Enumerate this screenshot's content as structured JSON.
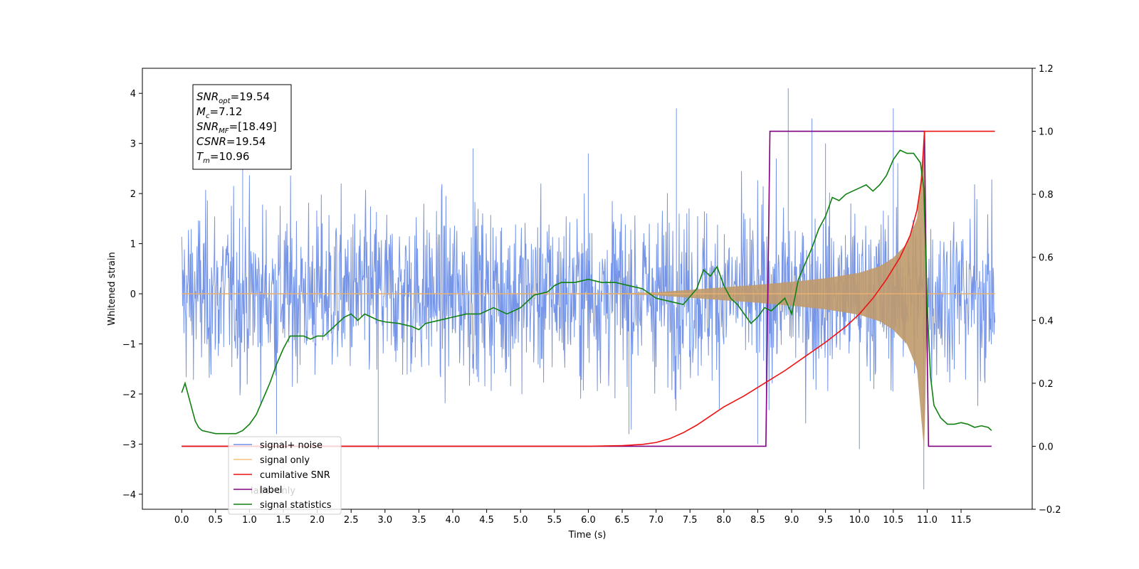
{
  "chart_data": {
    "type": "line",
    "xlabel": "Time (s)",
    "ylabel": "Whitened strain",
    "xlim": [
      -0.58,
      12.55
    ],
    "ylim": [
      -4.3,
      4.5
    ],
    "y2lim": [
      -0.2,
      1.2
    ],
    "x_ticks": [
      "0.0",
      "0.5",
      "1.0",
      "1.5",
      "2.0",
      "2.5",
      "3.0",
      "3.5",
      "4.0",
      "4.5",
      "5.0",
      "5.5",
      "6.0",
      "6.5",
      "7.0",
      "7.5",
      "8.0",
      "8.5",
      "9.0",
      "9.5",
      "10.0",
      "10.5",
      "11.0",
      "11.5"
    ],
    "y_ticks": [
      "−4",
      "−3",
      "−2",
      "−1",
      "0",
      "1",
      "2",
      "3",
      "4"
    ],
    "y2_ticks": [
      "−0.2",
      "0.0",
      "0.2",
      "0.4",
      "0.6",
      "0.8",
      "1.0",
      "1.2"
    ],
    "annotation": {
      "lines": [
        {
          "base": "SNR",
          "sub": "opt",
          "value": "=19.54"
        },
        {
          "base": "M",
          "sub": "c",
          "value": "=7.12"
        },
        {
          "base": "SNR",
          "sub": "MF",
          "value": "=[18.49]"
        },
        {
          "base": "CSNR",
          "sub": "",
          "value": "=19.54"
        },
        {
          "base": "T",
          "sub": "m",
          "value": "=10.96"
        }
      ]
    },
    "legend": {
      "placement": "lower-left",
      "entries": [
        "signal+ noise",
        "signal only",
        "cumilative SNR",
        "label",
        "signal statistics"
      ],
      "overlapped_text": [
        "label only"
      ]
    },
    "series": [
      {
        "name": "signal+ noise",
        "axis": "left",
        "color": "#6f8fe6",
        "kind": "noise_band",
        "x_range": [
          0.0,
          12.0
        ],
        "typical_amplitude": [
          -2.2,
          2.2
        ],
        "spikes": [
          [
            0.9,
            2.7
          ],
          [
            1.4,
            -2.8
          ],
          [
            2.9,
            -3.1
          ],
          [
            4.3,
            2.9
          ],
          [
            6.0,
            2.8
          ],
          [
            6.6,
            -2.8
          ],
          [
            7.3,
            3.7
          ],
          [
            8.5,
            -3.0
          ],
          [
            8.95,
            4.1
          ],
          [
            9.3,
            3.5
          ],
          [
            9.5,
            3.0
          ],
          [
            10.0,
            -3.1
          ],
          [
            10.5,
            3.7
          ],
          [
            10.95,
            -3.9
          ]
        ]
      },
      {
        "name": "signal only",
        "axis": "left",
        "color": "#c8a070",
        "kind": "chirp_envelope",
        "x": [
          0.0,
          6.5,
          7.0,
          7.5,
          8.0,
          8.5,
          9.0,
          9.5,
          10.0,
          10.3,
          10.5,
          10.7,
          10.85,
          10.92,
          10.96,
          11.0,
          12.0
        ],
        "envelope": [
          0.0,
          0.01,
          0.03,
          0.08,
          0.13,
          0.18,
          0.24,
          0.31,
          0.42,
          0.55,
          0.72,
          1.0,
          1.5,
          2.6,
          3.2,
          0.0,
          0.0
        ]
      },
      {
        "name": "cumilative SNR",
        "axis": "right",
        "color": "#ee1111",
        "x": [
          0.0,
          6.0,
          6.5,
          6.8,
          7.0,
          7.2,
          7.4,
          7.6,
          7.8,
          8.0,
          8.3,
          8.6,
          8.9,
          9.2,
          9.5,
          9.8,
          10.0,
          10.2,
          10.4,
          10.6,
          10.75,
          10.85,
          10.92,
          10.96,
          12.0
        ],
        "values": [
          0.0,
          0.0,
          0.002,
          0.006,
          0.012,
          0.024,
          0.043,
          0.067,
          0.096,
          0.125,
          0.16,
          0.2,
          0.24,
          0.285,
          0.33,
          0.38,
          0.42,
          0.47,
          0.53,
          0.6,
          0.67,
          0.75,
          0.85,
          1.0,
          1.0
        ]
      },
      {
        "name": "label",
        "axis": "right",
        "color": "#800080",
        "x": [
          0.0,
          8.62,
          8.68,
          10.92,
          10.96,
          11.0,
          11.02,
          11.95
        ],
        "values": [
          0.0,
          0.0,
          1.0,
          1.0,
          1.0,
          0.3,
          0.0,
          0.0
        ]
      },
      {
        "name": "signal statistics",
        "axis": "right",
        "color": "#108010",
        "x": [
          0.0,
          0.05,
          0.1,
          0.15,
          0.2,
          0.25,
          0.3,
          0.4,
          0.5,
          0.6,
          0.7,
          0.8,
          0.9,
          1.0,
          1.1,
          1.2,
          1.3,
          1.4,
          1.5,
          1.6,
          1.7,
          1.8,
          1.9,
          2.0,
          2.1,
          2.2,
          2.3,
          2.4,
          2.5,
          2.6,
          2.7,
          2.8,
          2.9,
          3.0,
          3.2,
          3.4,
          3.5,
          3.6,
          3.8,
          4.0,
          4.2,
          4.4,
          4.6,
          4.8,
          5.0,
          5.2,
          5.4,
          5.5,
          5.6,
          5.8,
          6.0,
          6.2,
          6.4,
          6.6,
          6.8,
          7.0,
          7.2,
          7.4,
          7.6,
          7.7,
          7.8,
          7.9,
          8.0,
          8.1,
          8.2,
          8.3,
          8.4,
          8.5,
          8.6,
          8.7,
          8.8,
          8.9,
          9.0,
          9.1,
          9.2,
          9.3,
          9.4,
          9.5,
          9.6,
          9.7,
          9.8,
          9.9,
          10.0,
          10.1,
          10.2,
          10.3,
          10.4,
          10.5,
          10.6,
          10.7,
          10.8,
          10.9,
          10.95,
          11.0,
          11.05,
          11.1,
          11.2,
          11.3,
          11.4,
          11.5,
          11.6,
          11.7,
          11.8,
          11.9,
          11.95
        ],
        "values": [
          0.17,
          0.2,
          0.16,
          0.12,
          0.08,
          0.06,
          0.05,
          0.045,
          0.04,
          0.04,
          0.04,
          0.04,
          0.05,
          0.07,
          0.1,
          0.15,
          0.2,
          0.26,
          0.31,
          0.35,
          0.35,
          0.35,
          0.34,
          0.35,
          0.35,
          0.37,
          0.39,
          0.41,
          0.42,
          0.4,
          0.42,
          0.41,
          0.4,
          0.395,
          0.39,
          0.38,
          0.37,
          0.39,
          0.4,
          0.41,
          0.42,
          0.42,
          0.44,
          0.42,
          0.44,
          0.48,
          0.49,
          0.51,
          0.52,
          0.52,
          0.53,
          0.52,
          0.52,
          0.51,
          0.5,
          0.47,
          0.46,
          0.45,
          0.5,
          0.56,
          0.54,
          0.57,
          0.51,
          0.47,
          0.45,
          0.42,
          0.39,
          0.41,
          0.44,
          0.43,
          0.45,
          0.47,
          0.42,
          0.53,
          0.58,
          0.63,
          0.69,
          0.73,
          0.79,
          0.78,
          0.8,
          0.81,
          0.82,
          0.83,
          0.81,
          0.83,
          0.86,
          0.91,
          0.94,
          0.93,
          0.93,
          0.9,
          0.82,
          0.45,
          0.22,
          0.13,
          0.09,
          0.07,
          0.07,
          0.075,
          0.07,
          0.06,
          0.065,
          0.06,
          0.05
        ]
      }
    ]
  }
}
